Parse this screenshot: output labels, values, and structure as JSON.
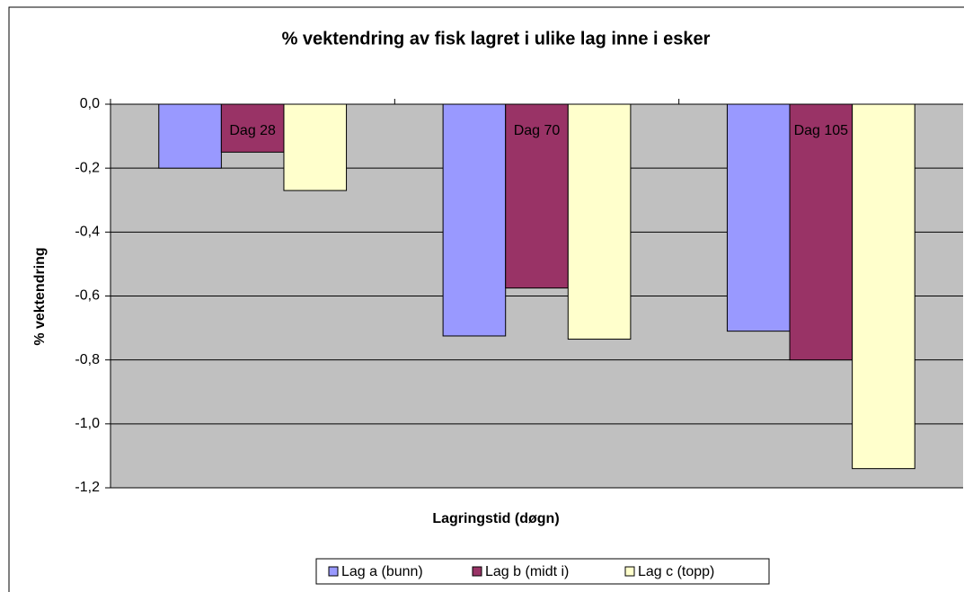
{
  "chart_data": {
    "type": "bar",
    "title": "% vektendring av fisk lagret i ulike lag inne i esker",
    "x_label": "Lagringstid (døgn)",
    "y_label": "% vektendring",
    "categories": [
      "Dag 28",
      "Dag 70",
      "Dag 105"
    ],
    "series": [
      {
        "name": "Lag a (bunn)",
        "color": "#9999ff",
        "values": [
          -0.2,
          -0.725,
          -0.71
        ]
      },
      {
        "name": "Lag b (midt i)",
        "color": "#993366",
        "values": [
          -0.15,
          -0.575,
          -0.8
        ]
      },
      {
        "name": "Lag c (topp)",
        "color": "#ffffcc",
        "values": [
          -0.27,
          -0.735,
          -1.14
        ]
      }
    ],
    "ylim": [
      -1.2,
      0
    ],
    "yticks": [
      {
        "value": 0,
        "label": "0,0"
      },
      {
        "value": -0.2,
        "label": "-0,2"
      },
      {
        "value": -0.4,
        "label": "-0,4"
      },
      {
        "value": -0.6,
        "label": "-0,6"
      },
      {
        "value": -0.8,
        "label": "-0,8"
      },
      {
        "value": -1.0,
        "label": "-1,0"
      },
      {
        "value": -1.2,
        "label": "-1,2"
      }
    ],
    "grid": true,
    "legend": "bottom",
    "background": "#c0c0c0"
  }
}
